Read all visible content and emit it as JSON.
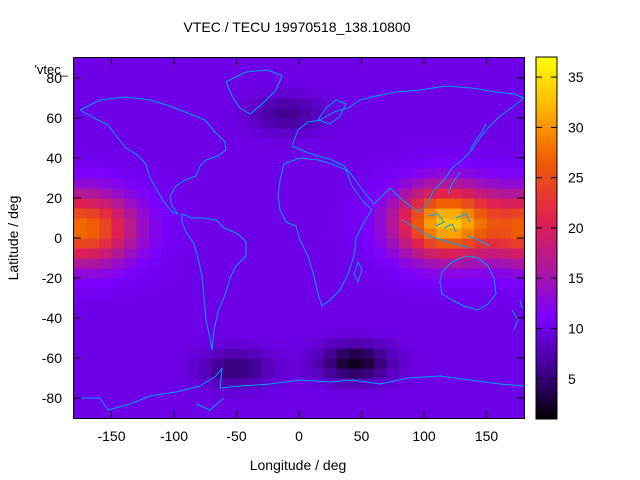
{
  "chart_data": {
    "type": "heatmap",
    "title": "VTEC / TECU 19970518_138.10800",
    "xlabel": "Longitude / deg",
    "ylabel": "Latitude / deg",
    "series_label": "'vtec_",
    "xlim": [
      -180,
      180
    ],
    "ylim": [
      -90,
      90
    ],
    "xticks": [
      -150,
      -100,
      -50,
      0,
      50,
      100,
      150
    ],
    "yticks": [
      -80,
      -60,
      -40,
      -20,
      0,
      20,
      40,
      60,
      80
    ],
    "colorbar": {
      "min": 1,
      "max": 37,
      "ticks": [
        5,
        10,
        15,
        20,
        25,
        30,
        35
      ]
    },
    "field": {
      "background_tecu": 10,
      "features": [
        {
          "kind": "equatorial-anomaly",
          "lon": -170,
          "lat": 5,
          "peak_tecu": 27
        },
        {
          "kind": "equatorial-anomaly",
          "lon": 118,
          "lat": 8,
          "peak_tecu": 33
        },
        {
          "kind": "trough",
          "lon": 45,
          "lat": -62,
          "min_tecu": 2
        },
        {
          "kind": "trough",
          "lon": -50,
          "lat": -65,
          "min_tecu": 5
        },
        {
          "kind": "trough",
          "lon": -10,
          "lat": 62,
          "min_tecu": 6
        }
      ]
    }
  },
  "colors": {
    "coastline": "#00a0ff",
    "axis": "#000000",
    "palette": [
      "#000000",
      "#3a0080",
      "#7a00ff",
      "#b0189a",
      "#e02050",
      "#f06000",
      "#ffc000",
      "#ffff00"
    ]
  }
}
